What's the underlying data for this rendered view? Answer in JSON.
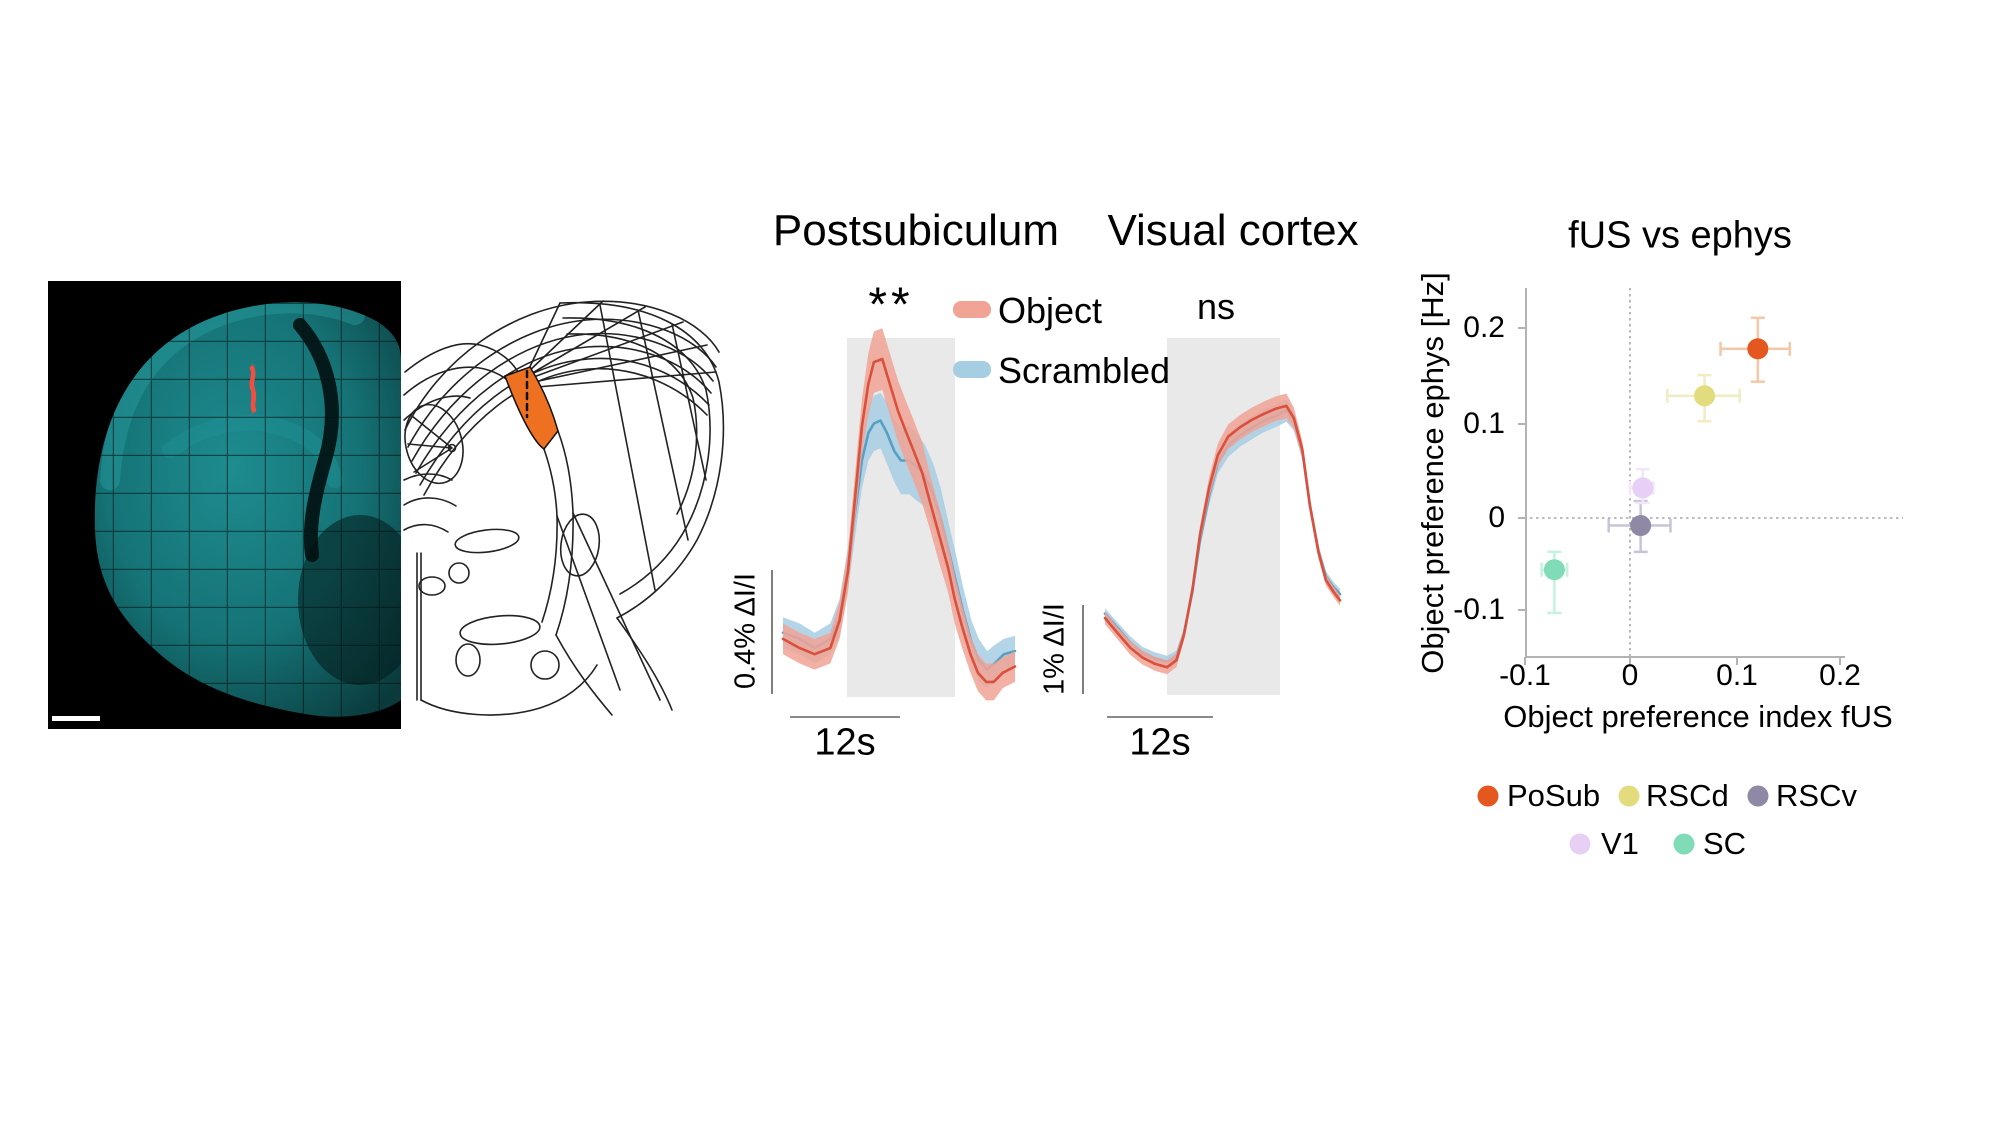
{
  "colors": {
    "object_line": "#D9503C",
    "object_band": "#F1A395",
    "scrambled_line": "#569FC5",
    "scrambled_band": "#A6CEE3",
    "stim_box": "#E9E9E9",
    "atlas_highlight": "#EE7121",
    "histology_tissue": "#157376",
    "histology_marker": "#FF4B3E"
  },
  "chart_data": [
    {
      "type": "line",
      "title": "Postsubiculum",
      "significance": "**",
      "x_unit": "s",
      "y_unit": "% ΔI/I",
      "x_scalebar": "12s",
      "y_scalebar": "0.4% ΔI/I",
      "stim_window_s": [
        6.9,
        18.5
      ],
      "series": [
        {
          "name": "Object",
          "color": "#D9503C",
          "band_color": "#F1A395",
          "t": [
            0,
            1.8,
            3.4,
            5.1,
            6.1,
            7.0,
            7.8,
            8.5,
            9.2,
            9.8,
            10.7,
            11.5,
            12.4,
            13.3,
            14.1,
            15.0,
            15.8,
            16.9,
            17.8,
            18.5,
            19.3,
            20.2,
            21.0,
            21.9,
            22.7,
            23.7,
            25
          ],
          "v": [
            0.02,
            -0.01,
            -0.03,
            -0.01,
            0.08,
            0.24,
            0.49,
            0.71,
            0.85,
            0.92,
            0.93,
            0.85,
            0.76,
            0.69,
            0.63,
            0.56,
            0.47,
            0.35,
            0.25,
            0.15,
            0.06,
            -0.03,
            -0.09,
            -0.12,
            -0.12,
            -0.09,
            -0.07
          ],
          "band": [
            0.05,
            0.05,
            0.05,
            0.05,
            0.06,
            0.07,
            0.08,
            0.09,
            0.1,
            0.1,
            0.1,
            0.1,
            0.1,
            0.1,
            0.1,
            0.1,
            0.09,
            0.09,
            0.08,
            0.08,
            0.07,
            0.06,
            0.06,
            0.06,
            0.06,
            0.05,
            0.05
          ]
        },
        {
          "name": "Scrambled",
          "color": "#569FC5",
          "band_color": "#A6CEE3",
          "t": [
            0,
            1.8,
            3.4,
            5.1,
            6.1,
            7.0,
            7.8,
            8.5,
            9.2,
            9.8,
            10.5,
            11.2,
            12.0,
            12.7,
            13.6,
            14.4,
            15.3,
            16.2,
            17.0,
            17.9,
            18.6,
            19.4,
            20.3,
            21.1,
            22.0,
            22.8,
            23.8,
            25
          ],
          "v": [
            0.04,
            0.02,
            -0.01,
            0.02,
            0.09,
            0.25,
            0.44,
            0.6,
            0.69,
            0.72,
            0.73,
            0.69,
            0.63,
            0.6,
            0.6,
            0.58,
            0.55,
            0.49,
            0.41,
            0.3,
            0.21,
            0.11,
            0.01,
            -0.05,
            -0.08,
            -0.06,
            -0.03,
            -0.02
          ],
          "band": [
            0.05,
            0.05,
            0.05,
            0.05,
            0.06,
            0.07,
            0.08,
            0.09,
            0.09,
            0.09,
            0.09,
            0.1,
            0.1,
            0.11,
            0.11,
            0.11,
            0.1,
            0.1,
            0.1,
            0.09,
            0.09,
            0.08,
            0.07,
            0.07,
            0.06,
            0.06,
            0.05,
            0.05
          ]
        }
      ]
    },
    {
      "type": "line",
      "title": "Visual cortex",
      "significance": "ns",
      "x_unit": "s",
      "y_unit": "% ΔI/I",
      "x_scalebar": "12s",
      "y_scalebar": "1% ΔI/I",
      "stim_window_s": [
        6.6,
        18.6
      ],
      "series": [
        {
          "name": "Object",
          "color": "#D9503C",
          "band_color": "#F1A395",
          "t": [
            0,
            1.4,
            2.7,
            4.0,
            5.3,
            6.6,
            7.6,
            8.4,
            9.3,
            10.1,
            11.1,
            12.0,
            13.1,
            14.4,
            15.6,
            16.9,
            18.2,
            19.3,
            20.1,
            21.0,
            21.8,
            22.7,
            23.5,
            24.3,
            25
          ],
          "v": [
            0,
            -0.18,
            -0.34,
            -0.45,
            -0.52,
            -0.56,
            -0.48,
            -0.19,
            0.32,
            0.94,
            1.49,
            1.85,
            2.06,
            2.17,
            2.25,
            2.32,
            2.38,
            2.41,
            2.27,
            1.91,
            1.28,
            0.75,
            0.43,
            0.3,
            0.2
          ],
          "band": [
            0.07,
            0.07,
            0.08,
            0.08,
            0.08,
            0.08,
            0.08,
            0.07,
            0.08,
            0.1,
            0.12,
            0.13,
            0.14,
            0.14,
            0.14,
            0.14,
            0.14,
            0.14,
            0.12,
            0.1,
            0.08,
            0.07,
            0.06,
            0.06,
            0.06
          ]
        },
        {
          "name": "Scrambled",
          "color": "#569FC5",
          "band_color": "#A6CEE3",
          "t": [
            0,
            1.4,
            2.7,
            4.0,
            5.3,
            6.6,
            7.6,
            8.4,
            9.3,
            10.1,
            11.1,
            12.0,
            13.1,
            14.4,
            15.6,
            16.9,
            18.2,
            19.3,
            20.1,
            21.0,
            21.8,
            22.7,
            23.5,
            24.3,
            25
          ],
          "v": [
            0.05,
            -0.12,
            -0.28,
            -0.4,
            -0.46,
            -0.5,
            -0.44,
            -0.17,
            0.3,
            0.88,
            1.4,
            1.76,
            1.96,
            2.08,
            2.16,
            2.24,
            2.3,
            2.36,
            2.24,
            1.89,
            1.28,
            0.77,
            0.47,
            0.35,
            0.27
          ],
          "band": [
            0.06,
            0.06,
            0.07,
            0.07,
            0.07,
            0.07,
            0.07,
            0.06,
            0.07,
            0.09,
            0.11,
            0.12,
            0.13,
            0.13,
            0.13,
            0.13,
            0.13,
            0.13,
            0.11,
            0.09,
            0.07,
            0.06,
            0.06,
            0.06,
            0.06
          ]
        }
      ]
    },
    {
      "type": "scatter",
      "title": "fUS vs ephys",
      "xlabel": "Object preference index fUS",
      "ylabel": "Object preference ephys [Hz]",
      "xticks": [
        -0.1,
        0,
        0.1,
        0.2
      ],
      "yticks": [
        0.2,
        0.1,
        0,
        -0.1
      ],
      "xlim": [
        -0.1,
        0.22
      ],
      "ylim": [
        -0.14,
        0.24
      ],
      "zero_lines": "dashed",
      "points": [
        {
          "label": "PoSub",
          "color": "#E4571E",
          "light": "#F5C7A6",
          "x": 0.12,
          "y": 0.18,
          "ex": [
            0.035,
            0.03
          ],
          "ey": [
            0.035,
            0.033
          ]
        },
        {
          "label": "RSCd",
          "color": "#E3DC7E",
          "light": "#F1ECC2",
          "x": 0.07,
          "y": 0.13,
          "ex": [
            0.035,
            0.033
          ],
          "ey": [
            0.027,
            0.022
          ]
        },
        {
          "label": "RSCv",
          "color": "#8F89A6",
          "light": "#C8C4D8",
          "x": 0.01,
          "y": -0.008,
          "ex": [
            0.03,
            0.028
          ],
          "ey": [
            0.028,
            0.026
          ]
        },
        {
          "label": "V1",
          "color": "#E7CFF5",
          "light": "#F3E6FB",
          "x": 0.012,
          "y": 0.032,
          "ex": [
            0.012,
            0.01
          ],
          "ey": [
            0.016,
            0.02
          ]
        },
        {
          "label": "SC",
          "color": "#7FDCB6",
          "light": "#C6F0DF",
          "x": -0.071,
          "y": -0.055,
          "ex": [
            0.012,
            0.012
          ],
          "ey": [
            0.046,
            0.019
          ]
        }
      ]
    }
  ]
}
